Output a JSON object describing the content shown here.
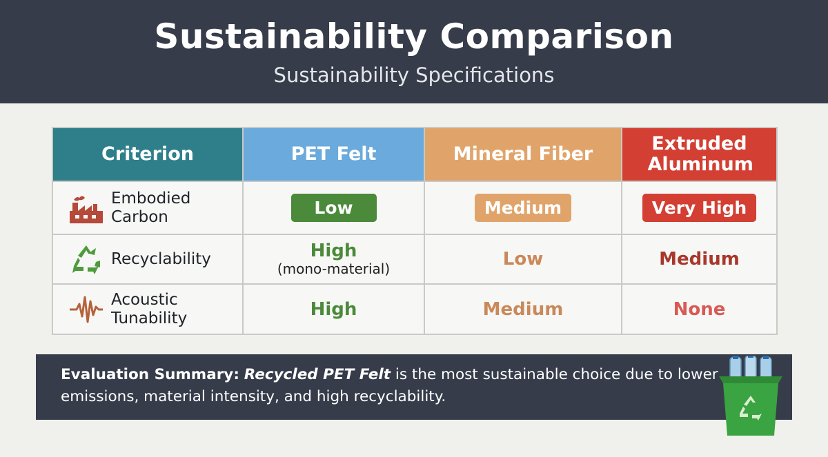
{
  "header": {
    "title": "Sustainability Comparison",
    "subtitle": "Sustainability Specifications"
  },
  "table": {
    "columns": [
      "Criterion",
      "PET Felt",
      "Mineral Fiber",
      "Extruded Aluminum"
    ],
    "rows": [
      {
        "criterion": "Embodied Carbon",
        "icon": "factory-icon",
        "pet": "Low",
        "mineral": "Medium",
        "aluminum": "Very High"
      },
      {
        "criterion": "Recyclability",
        "icon": "recycle-icon",
        "pet": "High",
        "pet_note": "(mono-material)",
        "mineral": "Low",
        "aluminum": "Medium"
      },
      {
        "criterion": "Acoustic Tunability",
        "icon": "sound-wave-icon",
        "pet": "High",
        "mineral": "Medium",
        "aluminum": "None"
      }
    ]
  },
  "summary": {
    "lead": "Evaluation Summary:",
    "emphasis": "Recycled PET Felt",
    "text": "is the most sustainable choice due to lower emissions, material intensity, and high recyclability."
  },
  "colors": {
    "header_bg": "#363c4a",
    "criterion_header": "#2e7f8a",
    "pet_header": "#6aaadc",
    "mineral_header": "#e0a46a",
    "aluminum_header": "#d33f33",
    "green": "#4a8a3a",
    "orange": "#e0a46a",
    "red": "#d33f33"
  }
}
